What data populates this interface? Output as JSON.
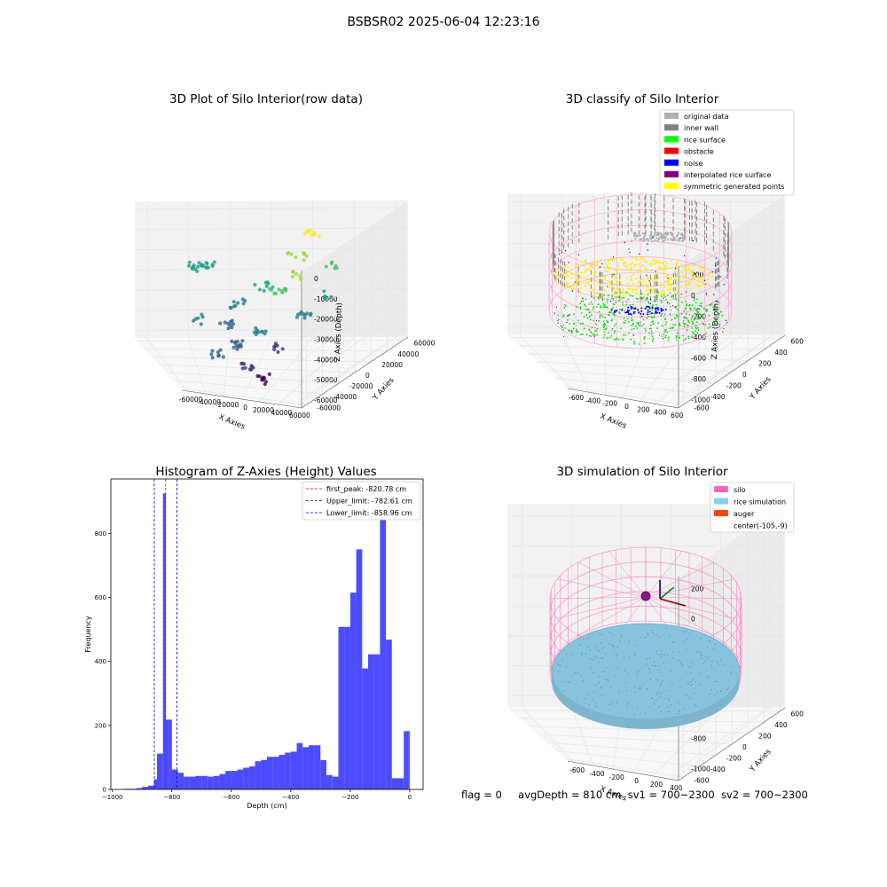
{
  "window_title": "BSBSR02 2025-06-04 12:23:16",
  "chart_data": [
    {
      "type": "scatter",
      "title": "3D Plot of Silo Interior(row data)",
      "xlabel": "X Axies",
      "ylabel": "Y Axies",
      "zlabel": "Z Axies (Depth)",
      "x_ticks": [
        "-60000",
        "-40000",
        "-20000",
        "0",
        "20000",
        "40000",
        "60000"
      ],
      "y_ticks": [
        "-60000",
        "-40000",
        "-20000",
        "0",
        "20000",
        "40000",
        "60000"
      ],
      "z_ticks": [
        "0",
        "-10000",
        "-20000",
        "-30000",
        "-40000",
        "-50000",
        "-60000"
      ],
      "xlim": [
        -60000,
        60000
      ],
      "ylim": [
        -60000,
        60000
      ],
      "zlim": [
        -65000,
        0
      ],
      "colormap": "viridis",
      "grid": true
    },
    {
      "type": "scatter",
      "title": "3D classify of Silo Interior",
      "xlabel": "X Axies",
      "ylabel": "Y Axies",
      "zlabel": "Z Axies (Depth)",
      "x_ticks": [
        "-600",
        "-400",
        "-200",
        "0",
        "200",
        "400",
        "600"
      ],
      "y_ticks": [
        "-600",
        "-400",
        "-200",
        "0",
        "200",
        "400",
        "600"
      ],
      "z_ticks": [
        "200",
        "0",
        "-200",
        "-400",
        "-600",
        "-800",
        "-1000"
      ],
      "xlim": [
        -700,
        700
      ],
      "ylim": [
        -700,
        700
      ],
      "zlim": [
        -1100,
        250
      ],
      "legend_position": "top-right",
      "legend": [
        {
          "label": "original data",
          "color": "#b0b0b0"
        },
        {
          "label": "inner wall",
          "color": "#808080"
        },
        {
          "label": "rice surface",
          "color": "#00ff00"
        },
        {
          "label": "obstacle",
          "color": "#ff0000"
        },
        {
          "label": "noise",
          "color": "#0000ff"
        },
        {
          "label": "interpolated rice surface",
          "color": "#800080"
        },
        {
          "label": "symmetric generated points",
          "color": "#ffff00"
        }
      ],
      "grid": true
    },
    {
      "type": "bar",
      "title": "Histogram of Z-Axies (Height) Values",
      "xlabel": "Depth (cm)",
      "ylabel": "Frequency",
      "x_ticks": [
        "−1000",
        "−800",
        "−600",
        "−400",
        "−200",
        "0"
      ],
      "y_ticks": [
        "0",
        "200",
        "400",
        "600",
        "800"
      ],
      "xlim": [
        -1005,
        45
      ],
      "ylim": [
        0,
        970
      ],
      "bin_width": 20,
      "bin_start": [
        -960,
        -940,
        -920,
        -900,
        -880,
        -860,
        -850,
        -840,
        -830,
        -820,
        -810,
        -800,
        -780,
        -760,
        -740,
        -720,
        -700,
        -680,
        -660,
        -640,
        -620,
        -600,
        -580,
        -560,
        -540,
        -520,
        -500,
        -480,
        -460,
        -440,
        -420,
        -400,
        -380,
        -360,
        -340,
        -320,
        -300,
        -280,
        -260,
        -240,
        -220,
        -200,
        -180,
        -160,
        -140,
        -120,
        -100,
        -80,
        -60,
        -40,
        -20,
        -5
      ],
      "bin_end": [
        -940,
        -920,
        -900,
        -880,
        -860,
        -850,
        -840,
        -830,
        -820,
        -810,
        -800,
        -780,
        -760,
        -740,
        -720,
        -700,
        -680,
        -660,
        -640,
        -620,
        -600,
        -580,
        -560,
        -540,
        -520,
        -500,
        -480,
        -460,
        -440,
        -420,
        -400,
        -380,
        -360,
        -340,
        -320,
        -300,
        -280,
        -260,
        -240,
        -220,
        -200,
        -180,
        -160,
        -140,
        -120,
        -100,
        -80,
        -60,
        -40,
        -20,
        -5,
        0
      ],
      "values": [
        2,
        2,
        4,
        8,
        12,
        32,
        112,
        112,
        925,
        218,
        218,
        62,
        52,
        40,
        40,
        42,
        42,
        40,
        42,
        48,
        58,
        58,
        62,
        68,
        72,
        88,
        92,
        102,
        102,
        108,
        115,
        118,
        145,
        132,
        138,
        138,
        92,
        45,
        40,
        508,
        508,
        615,
        750,
        378,
        422,
        422,
        842,
        468,
        35,
        35,
        182,
        182
      ],
      "series": [
        {
          "name": "Depth",
          "color": "#0000ff"
        }
      ],
      "lines": [
        {
          "label": "first_peak: -820.78 cm",
          "x": -820.78,
          "color": "#ff0000"
        },
        {
          "label": "Upper_limit: -782.61 cm",
          "x": -782.61,
          "color": "#0000cc"
        },
        {
          "label": "Lower_limit: -858.96 cm",
          "x": -858.96,
          "color": "#0000cc"
        }
      ],
      "legend_position": "top-right",
      "grid": false
    },
    {
      "type": "scatter",
      "title": "3D simulation of Silo Interior",
      "xlabel": "X Axies",
      "ylabel": "Y Axies",
      "zlabel": "Z Axies (Depth)",
      "x_ticks": [
        "-600",
        "-400",
        "-200",
        "0",
        "200",
        "400"
      ],
      "y_ticks": [
        "-600",
        "-400",
        "-200",
        "0",
        "200",
        "400",
        "600"
      ],
      "z_ticks": [
        "200",
        "0",
        "-200",
        "-400",
        "-600",
        "-800",
        "-1000"
      ],
      "xlim": [
        -700,
        500
      ],
      "ylim": [
        -700,
        700
      ],
      "zlim": [
        -1100,
        250
      ],
      "legend_position": "top-right",
      "legend": [
        {
          "label": "silo",
          "color": "#ff69b4"
        },
        {
          "label": "rice simulation",
          "color": "#87ceeb"
        },
        {
          "label": "auger",
          "color": "#ff4500"
        },
        {
          "label": "center(-105,-9)",
          "color": ""
        }
      ],
      "center": [
        -105,
        -9
      ],
      "grid": true
    }
  ],
  "status": {
    "flag": "flag = 0",
    "avg_depth": "avgDepth = 810 cm",
    "sv1": "sv1 = 700~2300",
    "sv2": "sv2 = 700~2300"
  }
}
